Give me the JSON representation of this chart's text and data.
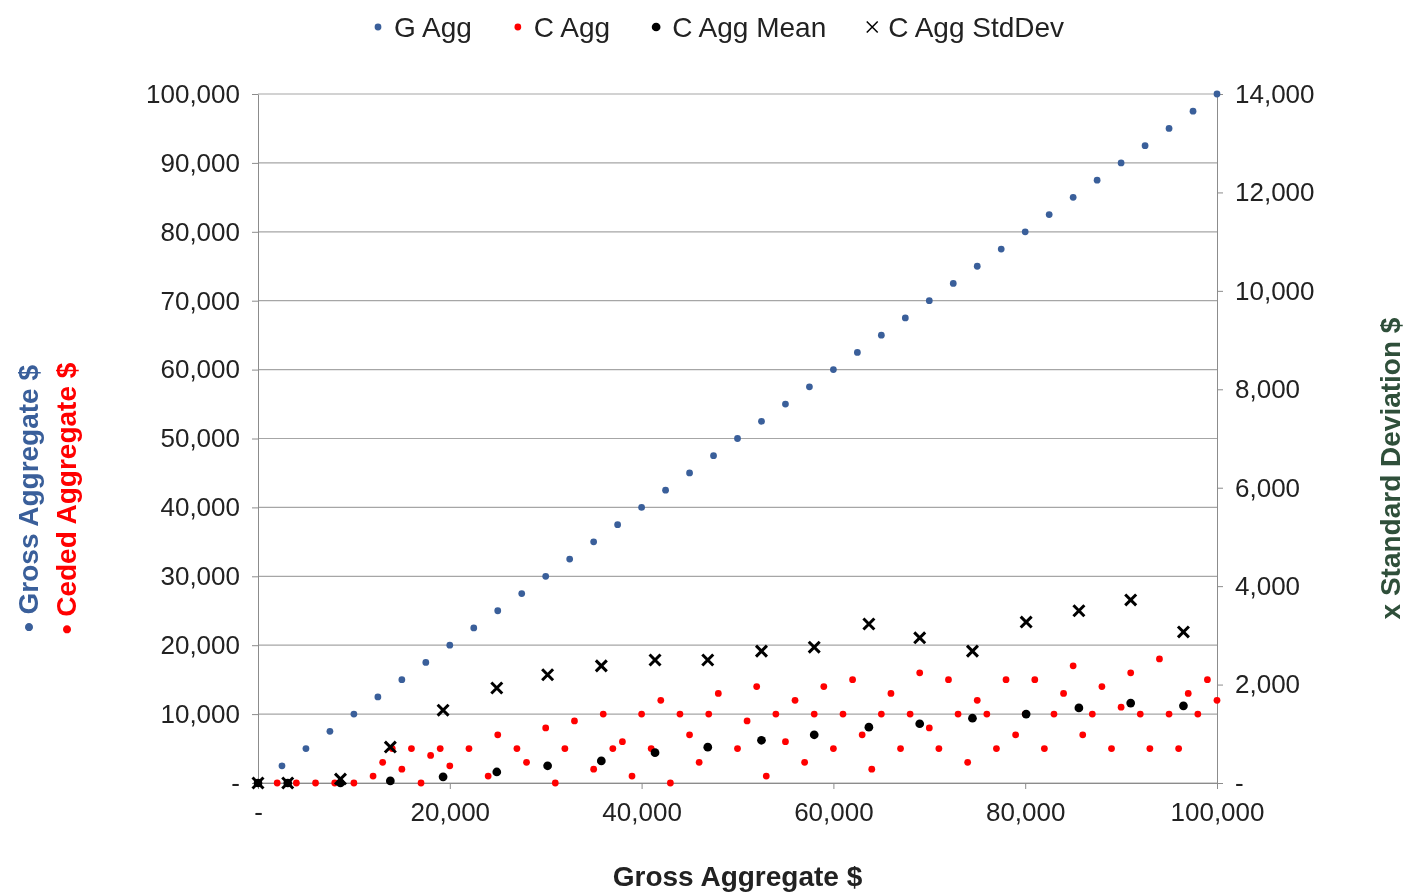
{
  "chart_data": {
    "type": "scatter",
    "xlabel": "Gross Aggregate $",
    "ylabel": "• Gross Aggregate $",
    "y2label": "x Standard Deviation $",
    "annotations": [
      "• Ceded Aggregate $"
    ],
    "xlim": [
      0,
      100000
    ],
    "ylim": [
      0,
      100000
    ],
    "y2lim": [
      0,
      14000
    ],
    "xticks": [
      {
        "value": 0,
        "label": "-"
      },
      {
        "value": 20000,
        "label": "20,000"
      },
      {
        "value": 40000,
        "label": "40,000"
      },
      {
        "value": 60000,
        "label": "60,000"
      },
      {
        "value": 80000,
        "label": "80,000"
      },
      {
        "value": 100000,
        "label": "100,000"
      }
    ],
    "yticks": [
      {
        "value": 0,
        "label": "-"
      },
      {
        "value": 10000,
        "label": "10,000"
      },
      {
        "value": 20000,
        "label": "20,000"
      },
      {
        "value": 30000,
        "label": "30,000"
      },
      {
        "value": 40000,
        "label": "40,000"
      },
      {
        "value": 50000,
        "label": "50,000"
      },
      {
        "value": 60000,
        "label": "60,000"
      },
      {
        "value": 70000,
        "label": "70,000"
      },
      {
        "value": 80000,
        "label": "80,000"
      },
      {
        "value": 90000,
        "label": "90,000"
      },
      {
        "value": 100000,
        "label": "100,000"
      }
    ],
    "y2ticks": [
      {
        "value": 0,
        "label": "-"
      },
      {
        "value": 2000,
        "label": "2,000"
      },
      {
        "value": 4000,
        "label": "4,000"
      },
      {
        "value": 6000,
        "label": "6,000"
      },
      {
        "value": 8000,
        "label": "8,000"
      },
      {
        "value": 10000,
        "label": "10,000"
      },
      {
        "value": 12000,
        "label": "12,000"
      },
      {
        "value": 14000,
        "label": "14,000"
      }
    ],
    "grid": "y",
    "legend": "top",
    "series": [
      {
        "name": "G Agg",
        "color": "#3a5f9a",
        "marker": "circle",
        "x": [
          2500,
          5000,
          7500,
          10000,
          12500,
          15000,
          17500,
          20000,
          22500,
          25000,
          27500,
          30000,
          32500,
          35000,
          37500,
          40000,
          42500,
          45000,
          47500,
          50000,
          52500,
          55000,
          57500,
          60000,
          62500,
          65000,
          67500,
          70000,
          72500,
          75000,
          77500,
          80000,
          82500,
          85000,
          87500,
          90000,
          92500,
          95000,
          97500,
          100000
        ],
        "values": [
          2500,
          5000,
          7500,
          10000,
          12500,
          15000,
          17500,
          20000,
          22500,
          25000,
          27500,
          30000,
          32500,
          35000,
          37500,
          40000,
          42500,
          45000,
          47500,
          50000,
          52500,
          55000,
          57500,
          60000,
          62500,
          65000,
          67500,
          70000,
          72500,
          75000,
          77500,
          80000,
          82500,
          85000,
          87500,
          90000,
          92500,
          95000,
          97500,
          100000
        ]
      },
      {
        "name": "C Agg",
        "color": "#ff0000",
        "marker": "circle",
        "x": [
          2000,
          4000,
          6000,
          8000,
          10000,
          12000,
          13000,
          14000,
          15000,
          16000,
          17000,
          18000,
          19000,
          20000,
          22000,
          24000,
          25000,
          27000,
          28000,
          30000,
          31000,
          32000,
          33000,
          35000,
          36000,
          37000,
          38000,
          39000,
          40000,
          41000,
          42000,
          43000,
          44000,
          45000,
          46000,
          47000,
          48000,
          50000,
          51000,
          52000,
          53000,
          54000,
          55000,
          56000,
          57000,
          58000,
          59000,
          60000,
          61000,
          62000,
          63000,
          64000,
          65000,
          66000,
          67000,
          68000,
          69000,
          70000,
          71000,
          72000,
          73000,
          74000,
          75000,
          76000,
          77000,
          78000,
          79000,
          80000,
          81000,
          82000,
          83000,
          84000,
          85000,
          86000,
          87000,
          88000,
          89000,
          90000,
          91000,
          92000,
          93000,
          94000,
          95000,
          96000,
          97000,
          98000,
          99000,
          100000
        ],
        "values": [
          0,
          0,
          0,
          0,
          0,
          1000,
          3000,
          5000,
          2000,
          5000,
          0,
          4000,
          5000,
          2500,
          5000,
          1000,
          7000,
          5000,
          3000,
          8000,
          0,
          5000,
          9000,
          2000,
          10000,
          5000,
          6000,
          1000,
          10000,
          5000,
          12000,
          0,
          10000,
          7000,
          3000,
          10000,
          13000,
          5000,
          9000,
          14000,
          1000,
          10000,
          6000,
          12000,
          3000,
          10000,
          14000,
          5000,
          10000,
          15000,
          7000,
          2000,
          10000,
          13000,
          5000,
          10000,
          16000,
          8000,
          5000,
          15000,
          10000,
          3000,
          12000,
          10000,
          5000,
          15000,
          7000,
          10000,
          15000,
          5000,
          10000,
          13000,
          17000,
          7000,
          10000,
          14000,
          5000,
          11000,
          16000,
          10000,
          5000,
          18000,
          10000,
          5000,
          13000,
          10000,
          15000,
          12000
        ]
      },
      {
        "name": "C Agg Mean",
        "color": "#000000",
        "marker": "circle",
        "x": [
          0,
          3100,
          8600,
          13800,
          19300,
          24900,
          30200,
          35800,
          41400,
          46900,
          52500,
          58000,
          63700,
          69000,
          74500,
          80100,
          85600,
          91000,
          96500
        ],
        "values": [
          0,
          0,
          0,
          300,
          900,
          1600,
          2500,
          3200,
          4400,
          5200,
          6200,
          7000,
          8100,
          8600,
          9400,
          10000,
          10900,
          11600,
          11200
        ]
      },
      {
        "name": "C Agg StdDev",
        "color": "#000000",
        "marker": "cross",
        "axis": "y2",
        "x": [
          0,
          3100,
          8600,
          13800,
          19300,
          24900,
          30200,
          35800,
          41400,
          46900,
          52500,
          58000,
          63700,
          69000,
          74500,
          80100,
          85600,
          91000,
          96500
        ],
        "values": [
          0,
          0,
          80,
          730,
          1480,
          1930,
          2200,
          2380,
          2500,
          2500,
          2680,
          2760,
          3230,
          2950,
          2680,
          3270,
          3500,
          3720,
          3070
        ]
      }
    ]
  }
}
